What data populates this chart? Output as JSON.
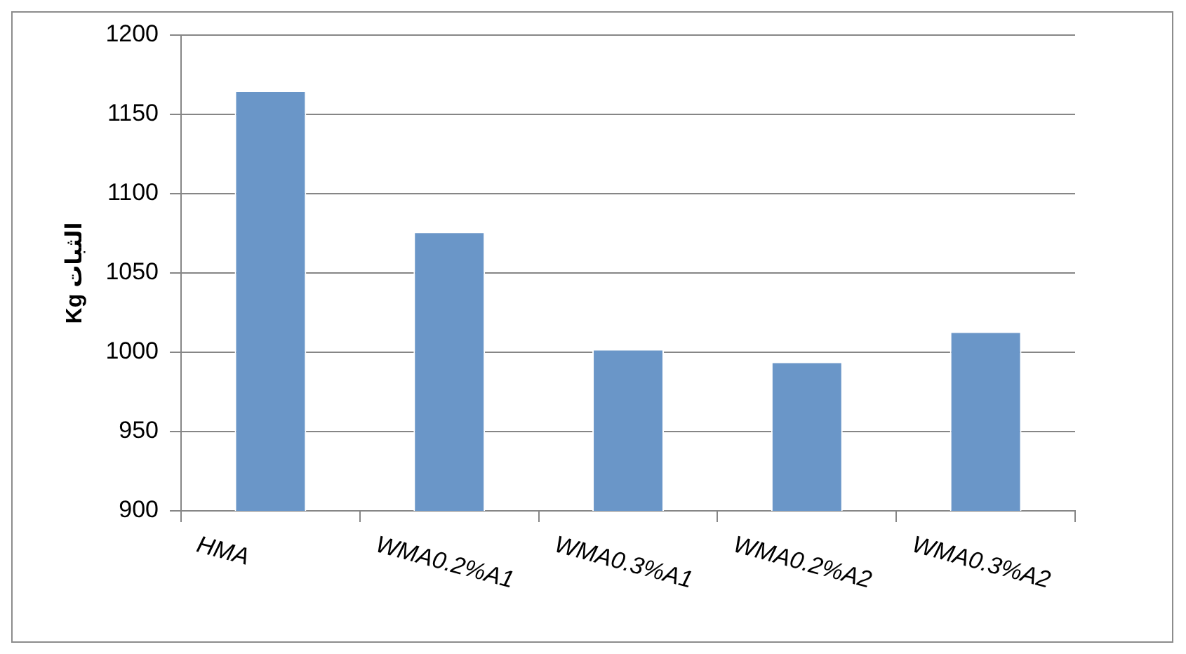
{
  "chart_data": {
    "type": "bar",
    "ylabel": "Kg الثبات",
    "categories": [
      "HMA",
      "WMA0.2%A1",
      "WMA0.3%A1",
      "WMA0.2%A2",
      "WMA0.3%A2"
    ],
    "values": [
      1165,
      1076,
      1002,
      994,
      1013
    ],
    "color": "#6a96c8",
    "ylim": [
      900,
      1200
    ],
    "yticks": [
      900,
      950,
      1000,
      1050,
      1100,
      1150,
      1200
    ],
    "grid": "y",
    "legend": false
  }
}
